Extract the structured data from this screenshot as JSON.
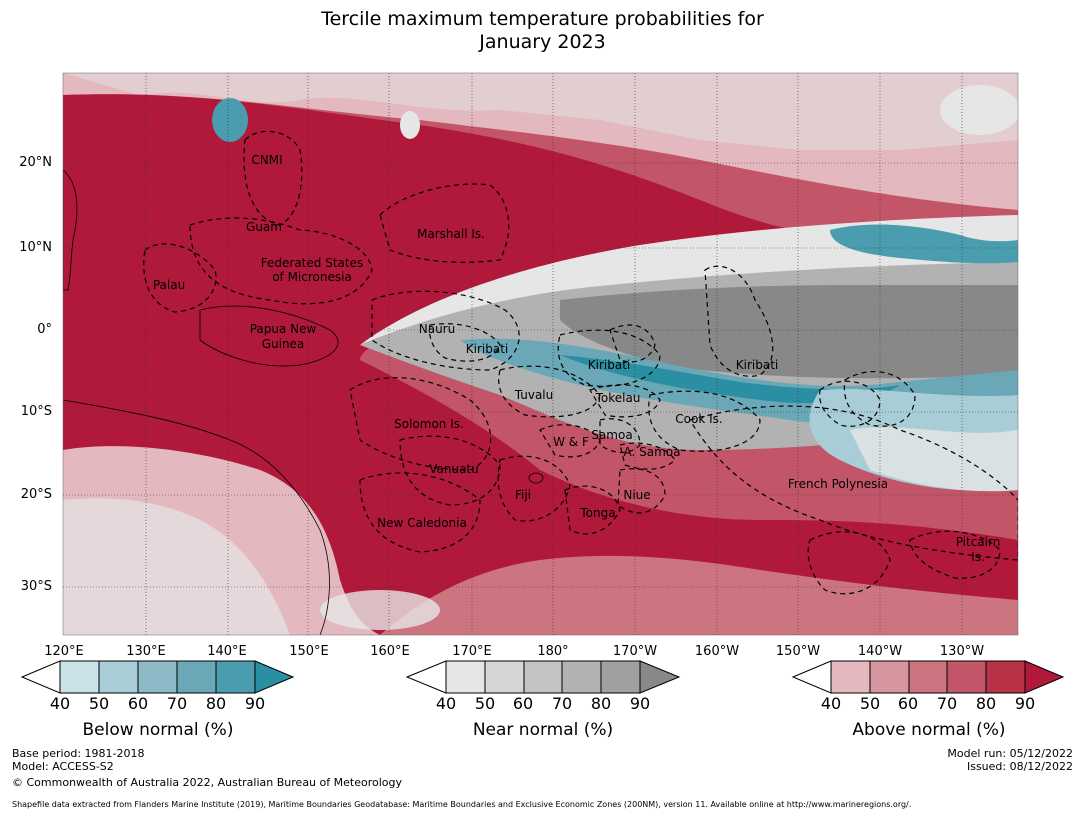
{
  "title": {
    "line1": "Tercile maximum temperature probabilities for",
    "line2": "January 2023"
  },
  "map": {
    "lat_labels": [
      "20°N",
      "10°N",
      "0°",
      "10°S",
      "20°S",
      "30°S"
    ],
    "lon_labels": [
      "120°E",
      "130°E",
      "140°E",
      "150°E",
      "160°E",
      "170°E",
      "180°",
      "170°W",
      "160°W",
      "150°W",
      "140°W",
      "130°W"
    ],
    "regions": [
      "CNMI",
      "Guam",
      "Marshall Is.",
      "Palau",
      "Federated States",
      "of Micronesia",
      "Papua New",
      "Guinea",
      "Nauru",
      "Kiribati",
      "Kiribati",
      "Kiribati",
      "Tuvalu",
      "Tokelau",
      "Cook Is.",
      "Solomon Is.",
      "W & F",
      "Samoa",
      "A. Samoa",
      "Vanuatu",
      "Fiji",
      "Niue",
      "Tonga",
      "New Caledonia",
      "French Polynesia",
      "Pitcairn",
      "Is."
    ]
  },
  "colorbars": [
    {
      "label": "Below normal (%)",
      "ticks": [
        "40",
        "50",
        "60",
        "70",
        "80",
        "90"
      ],
      "colors": [
        "#c9e2e8",
        "#a9cdd6",
        "#8bb9c6",
        "#6aa7b7",
        "#4a9dae",
        "#2b8fa3"
      ]
    },
    {
      "label": "Near normal (%)",
      "ticks": [
        "40",
        "50",
        "60",
        "70",
        "80",
        "90"
      ],
      "colors": [
        "#e6e6e6",
        "#d6d6d6",
        "#c4c4c4",
        "#b2b2b2",
        "#a0a0a0",
        "#888888"
      ]
    },
    {
      "label": "Above normal (%)",
      "ticks": [
        "40",
        "50",
        "60",
        "70",
        "80",
        "90"
      ],
      "colors": [
        "#e4b8bf",
        "#d6969f",
        "#cc7480",
        "#c35568",
        "#b83247",
        "#b0193a"
      ]
    }
  ],
  "footer": {
    "base_period": "Base period: 1981-2018",
    "model": "Model: ACCESS-S2",
    "copyright": "© Commonwealth of Australia 2022, Australian Bureau of Meteorology",
    "model_run": "Model run: 05/12/2022",
    "issued": "Issued: 08/12/2022",
    "shapefile": "Shapefile data extracted from Flanders Marine Institute (2019), Maritime Boundaries Geodatabase: Maritime Boundaries and Exclusive Economic Zones (200NM), version 11. Available online at http://www.marineregions.org/."
  }
}
